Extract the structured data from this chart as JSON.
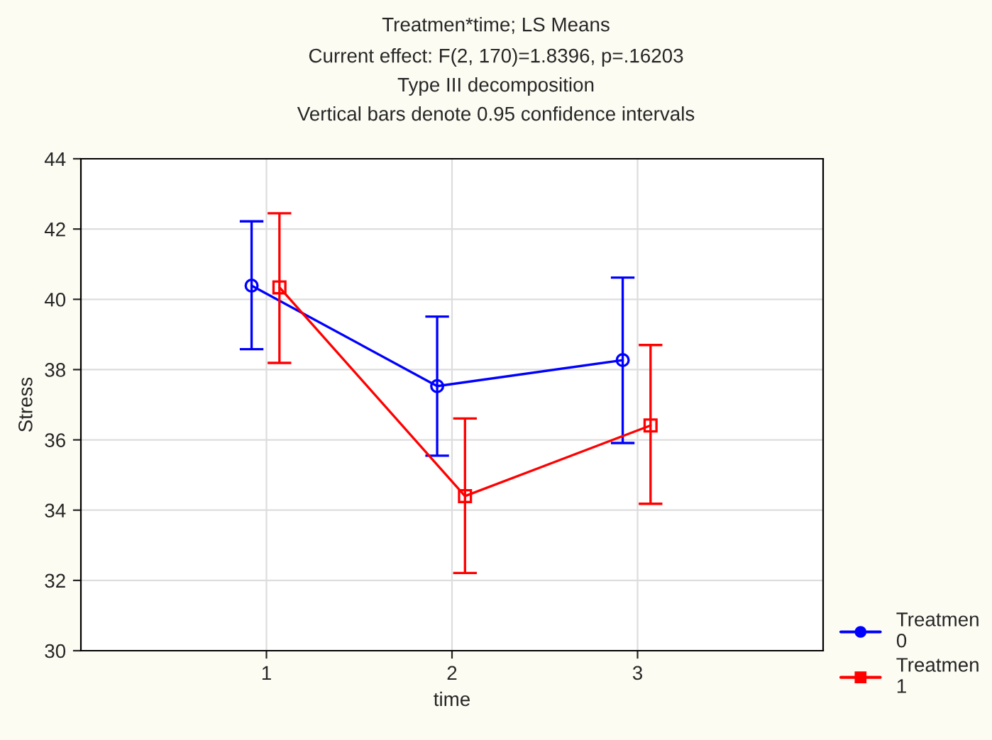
{
  "chart_data": {
    "type": "line",
    "title": "Treatmen*time; LS Means",
    "subtitle": "Current effect: F(2, 170)=1.8396, p=.16203\nType III decomposition\nVertical bars denote 0.95 confidence intervals",
    "xlabel": "time",
    "ylabel": "Stress",
    "xlim": [
      0,
      4
    ],
    "xticks": [
      1,
      2,
      3
    ],
    "ylim": [
      30,
      44
    ],
    "yticks": [
      30,
      32,
      34,
      36,
      38,
      40,
      42,
      44
    ],
    "grid": true,
    "legend": "bottom right",
    "line_style": "solid",
    "series": [
      {
        "name": "Treatmen\n0",
        "color": "#0000ff",
        "marker": "circle",
        "x": [
          0.92,
          1.92,
          2.92
        ],
        "values": [
          40.39,
          37.53,
          38.27
        ],
        "errors": [
          [
            38.58,
            42.22
          ],
          [
            35.55,
            39.51
          ],
          [
            35.91,
            40.62
          ]
        ]
      },
      {
        "name": "Treatmen\n1",
        "color": "#ff0000",
        "marker": "square",
        "x": [
          1.07,
          2.07,
          3.07
        ],
        "values": [
          40.34,
          34.4,
          36.41
        ],
        "errors": [
          [
            38.19,
            42.45
          ],
          [
            32.21,
            36.61
          ],
          [
            34.18,
            38.7
          ]
        ]
      }
    ]
  }
}
